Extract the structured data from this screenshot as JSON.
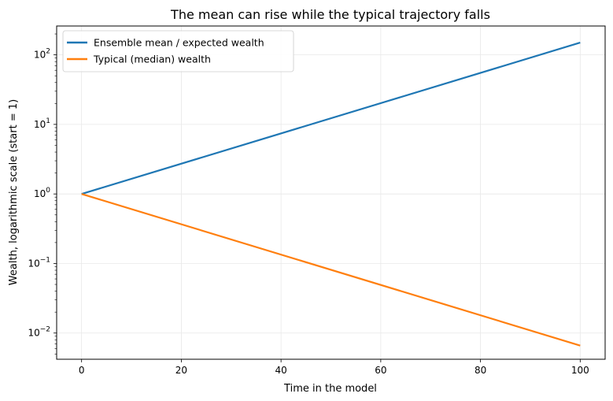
{
  "chart_data": {
    "type": "line",
    "title": "The mean can rise while the typical trajectory falls",
    "xlabel": "Time in the model",
    "ylabel": "Wealth, logarithmic scale (start = 1)",
    "y_scale": "log",
    "xlim": [
      -5,
      105
    ],
    "ylim": [
      0.0042,
      260
    ],
    "x_ticks": [
      0,
      20,
      40,
      60,
      80,
      100
    ],
    "y_ticks": [
      {
        "value": 0.01,
        "base": "10",
        "exp": "−2"
      },
      {
        "value": 0.1,
        "base": "10",
        "exp": "−1"
      },
      {
        "value": 1,
        "base": "10",
        "exp": "0"
      },
      {
        "value": 10,
        "base": "10",
        "exp": "1"
      },
      {
        "value": 100,
        "base": "10",
        "exp": "2"
      }
    ],
    "grid": true,
    "legend_position": "top-left",
    "series": [
      {
        "name": "Ensemble mean / expected wealth",
        "color": "#1f77b4",
        "x": [
          0,
          100
        ],
        "y": [
          1,
          150
        ]
      },
      {
        "name": "Typical (median) wealth",
        "color": "#ff7f0e",
        "x": [
          0,
          100
        ],
        "y": [
          1,
          0.0066
        ]
      }
    ]
  }
}
